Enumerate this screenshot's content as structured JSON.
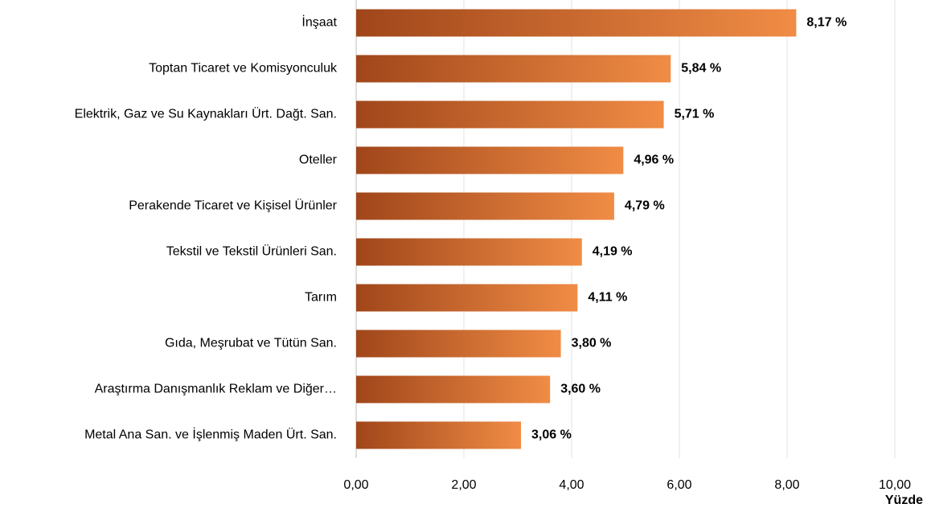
{
  "chart_data": {
    "type": "bar",
    "orientation": "horizontal",
    "categories": [
      "İnşaat",
      "Toptan Ticaret ve Komisyonculuk",
      "Elektrik, Gaz ve Su Kaynakları Ürt. Dağt. San.",
      "Oteller",
      "Perakende Ticaret ve Kişisel Ürünler",
      "Tekstil ve Tekstil Ürünleri San.",
      "Tarım",
      "Gıda, Meşrubat ve Tütün San.",
      "Araştırma Danışmanlık Reklam ve Diğer…",
      "Metal Ana San. ve İşlenmiş Maden Ürt. San."
    ],
    "values": [
      8.17,
      5.84,
      5.71,
      4.96,
      4.79,
      4.19,
      4.11,
      3.8,
      3.6,
      3.06
    ],
    "value_labels": [
      "8,17 %",
      "5,84 %",
      "5,71 %",
      "4,96 %",
      "4,79 %",
      "4,19 %",
      "4,11 %",
      "3,80 %",
      "3,60 %",
      "3,06 %"
    ],
    "color": [
      "#a0461a",
      "#f08c45"
    ],
    "xlabel": "Yüzde",
    "xlim": [
      0,
      10
    ],
    "xticks": [
      {
        "value": 0,
        "label": "0,00"
      },
      {
        "value": 2,
        "label": "2,00"
      },
      {
        "value": 4,
        "label": "4,00"
      },
      {
        "value": 6,
        "label": "6,00"
      },
      {
        "value": 8,
        "label": "8,00"
      },
      {
        "value": 10,
        "label": "10,00"
      }
    ],
    "grid": true
  }
}
